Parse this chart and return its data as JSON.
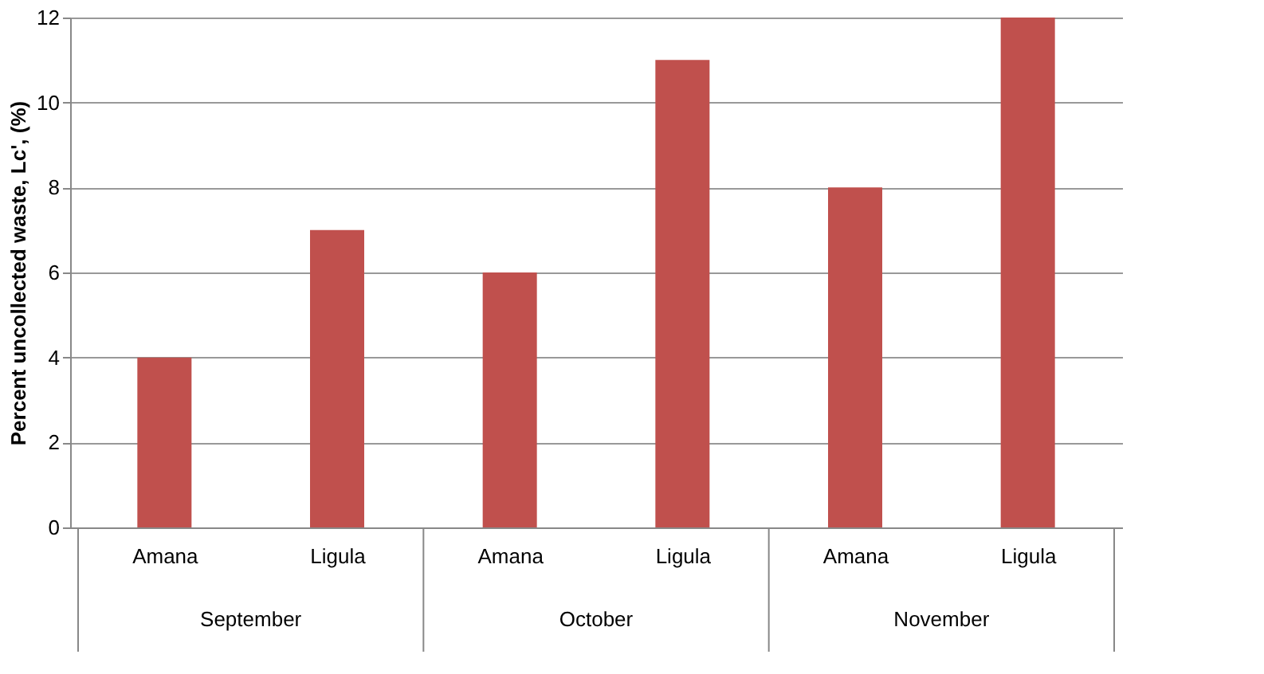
{
  "chart_data": {
    "type": "bar",
    "ylabel": "Percent uncollected waste, Lc', (%)",
    "categories": [
      "Amana",
      "Ligula",
      "Amana",
      "Ligula",
      "Amana",
      "Ligula"
    ],
    "values": [
      4,
      7,
      6,
      11,
      8,
      12
    ],
    "color": "#c0504d",
    "ylim": [
      0,
      12
    ],
    "yticks": [
      0,
      2,
      4,
      6,
      8,
      10,
      12
    ],
    "grid": "y",
    "annotations": [
      "September",
      "October",
      "November"
    ]
  }
}
